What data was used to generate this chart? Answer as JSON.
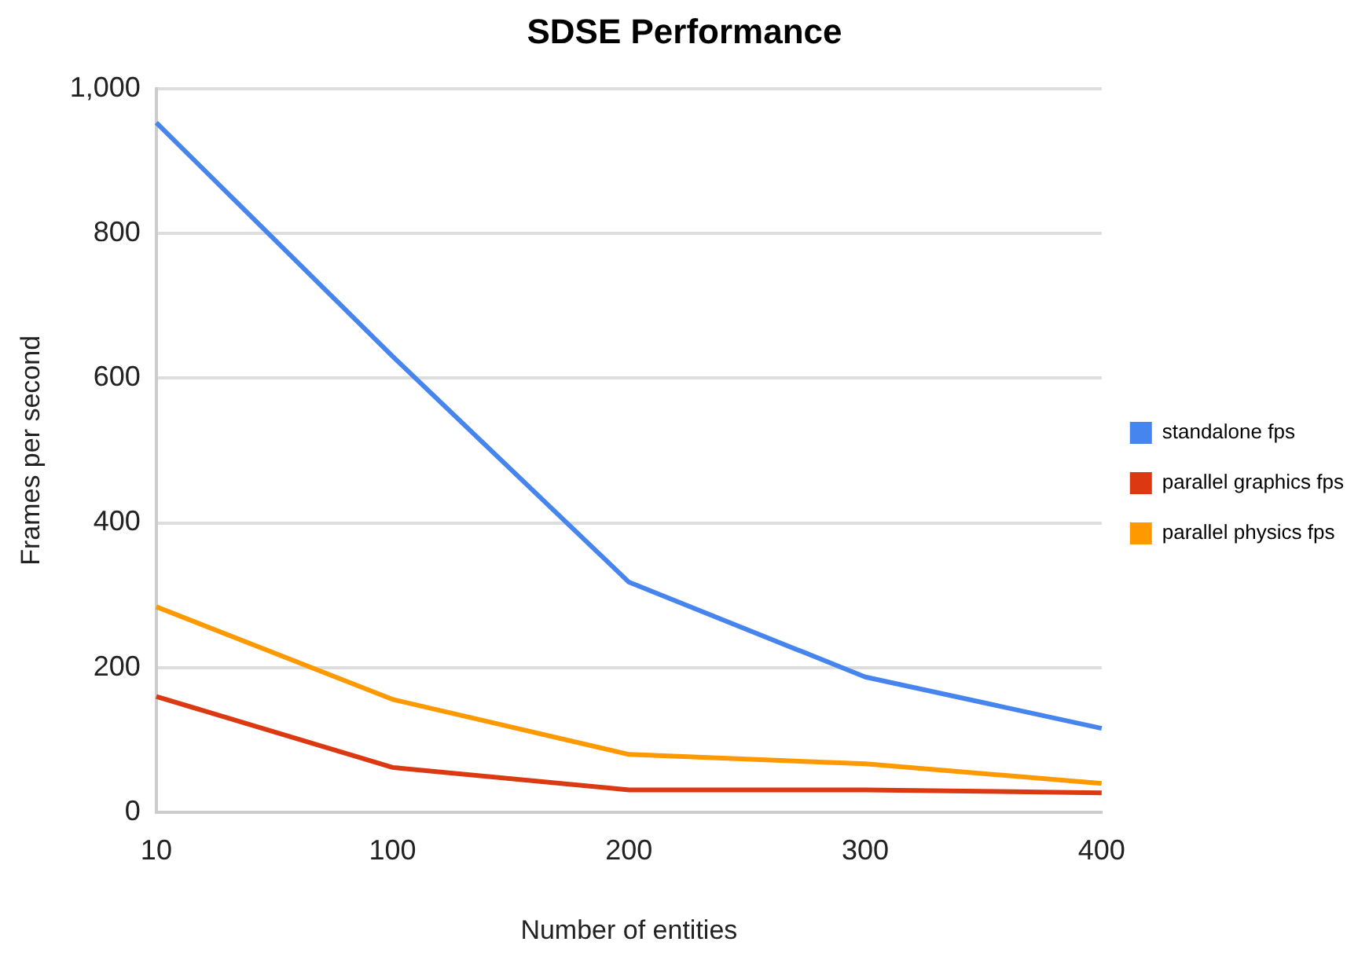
{
  "chart_data": {
    "type": "line",
    "title": "SDSE Performance",
    "xlabel": "Number of entities",
    "ylabel": "Frames per second",
    "categories": [
      "10",
      "100",
      "200",
      "300",
      "400"
    ],
    "series": [
      {
        "name": "standalone fps",
        "color": "#4684ee",
        "values": [
          953,
          630,
          318,
          187,
          116
        ]
      },
      {
        "name": "parallel graphics fps",
        "color": "#dc3912",
        "values": [
          160,
          62,
          31,
          31,
          27
        ]
      },
      {
        "name": "parallel physics fps",
        "color": "#ff9900",
        "values": [
          284,
          156,
          80,
          67,
          40
        ]
      }
    ],
    "ylim": [
      0,
      1000
    ],
    "yticks": [
      0,
      200,
      400,
      600,
      800,
      {
        "value": 1000,
        "label": "1,000"
      }
    ],
    "grid": "y",
    "legend": "right",
    "marker": "none",
    "line_style": "solid"
  }
}
